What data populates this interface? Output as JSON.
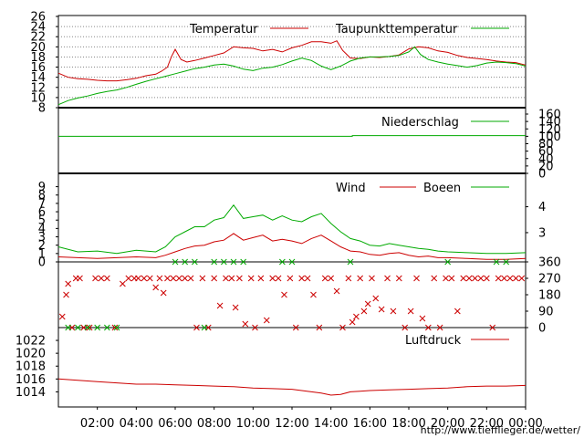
{
  "chart_data": {
    "type": "line",
    "source_url": "http://www.tiefflieger.de/wetter/",
    "x_ticks": [
      "02:00",
      "04:00",
      "06:00",
      "08:00",
      "10:00",
      "12:00",
      "14:00",
      "16:00",
      "18:00",
      "20:00",
      "22:00",
      "00:00"
    ],
    "x_tick_hours": [
      2,
      4,
      6,
      8,
      10,
      12,
      14,
      16,
      18,
      20,
      22,
      24
    ],
    "x_range": [
      0,
      24
    ],
    "panels": [
      {
        "id": "temperature",
        "ylim": [
          8,
          26
        ],
        "y_ticks_left": [
          "8",
          "10",
          "12",
          "14",
          "16",
          "18",
          "20",
          "22",
          "24",
          "26"
        ],
        "y_tick_values": [
          8,
          10,
          12,
          14,
          16,
          18,
          20,
          22,
          24,
          26
        ],
        "grid": "horizontal-dotted",
        "legend_placement": "top",
        "series": [
          {
            "name": "Temperatur",
            "color": "#cc0000",
            "x": [
              0,
              0.5,
              1,
              1.5,
              2,
              2.5,
              3,
              3.5,
              4,
              4.5,
              5,
              5.3,
              5.6,
              5.8,
              6,
              6.3,
              6.6,
              7,
              7.5,
              8,
              8.5,
              9,
              9.5,
              10,
              10.5,
              11,
              11.5,
              12,
              12.5,
              13,
              13.5,
              14,
              14.3,
              14.6,
              15,
              15.5,
              16,
              16.5,
              17,
              17.5,
              18,
              18.5,
              19,
              19.5,
              20,
              20.5,
              21,
              21.5,
              22,
              22.5,
              23,
              23.5,
              24
            ],
            "y": [
              14.8,
              14.0,
              13.7,
              13.6,
              13.4,
              13.3,
              13.3,
              13.5,
              13.8,
              14.3,
              14.6,
              15.2,
              16.0,
              18.0,
              19.5,
              17.5,
              17.0,
              17.3,
              17.8,
              18.3,
              18.8,
              20.0,
              19.8,
              19.7,
              19.2,
              19.5,
              19.0,
              19.8,
              20.3,
              21.0,
              21.0,
              20.7,
              21.2,
              19.3,
              17.8,
              17.7,
              18.0,
              17.9,
              18.1,
              18.4,
              19.6,
              20.0,
              19.8,
              19.2,
              18.9,
              18.3,
              17.9,
              17.7,
              17.5,
              17.2,
              17.0,
              16.9,
              16.4
            ]
          },
          {
            "name": "Taupunkttemperatur",
            "color": "#00aa00",
            "x": [
              0,
              0.5,
              1,
              1.5,
              2,
              2.5,
              3,
              3.5,
              4,
              4.5,
              5,
              5.5,
              6,
              6.5,
              7,
              7.5,
              8,
              8.5,
              9,
              9.5,
              10,
              10.5,
              11,
              11.5,
              12,
              12.5,
              13,
              13.5,
              14,
              14.5,
              15,
              15.5,
              16,
              16.5,
              17,
              17.5,
              18,
              18.3,
              18.6,
              19,
              19.5,
              20,
              20.5,
              21,
              21.5,
              22,
              22.5,
              23,
              23.5,
              24
            ],
            "y": [
              8.6,
              9.4,
              9.9,
              10.3,
              10.8,
              11.2,
              11.5,
              12.0,
              12.6,
              13.2,
              13.7,
              14.2,
              14.7,
              15.2,
              15.7,
              16.0,
              16.4,
              16.6,
              16.2,
              15.6,
              15.3,
              15.8,
              16.0,
              16.5,
              17.2,
              17.8,
              17.3,
              16.2,
              15.5,
              16.2,
              17.2,
              17.8,
              18.0,
              18.0,
              18.1,
              18.3,
              19.0,
              20.0,
              18.5,
              17.5,
              17.0,
              16.6,
              16.3,
              16.0,
              16.3,
              16.8,
              17.0,
              16.9,
              16.7,
              16.2
            ]
          }
        ]
      },
      {
        "id": "precipitation",
        "ylim": [
          0,
          160
        ],
        "y_ticks_right": [
          "0",
          "20",
          "40",
          "60",
          "80",
          "100",
          "120",
          "140",
          "160"
        ],
        "y_tick_values": [
          0,
          20,
          40,
          60,
          80,
          100,
          120,
          140,
          160
        ],
        "legend_placement": "top-right",
        "series": [
          {
            "name": "Niederschlag",
            "color": "#00aa00",
            "x": [
              0,
              15.1,
              15.1,
              24
            ],
            "y": [
              100,
              100,
              102,
              102
            ]
          }
        ]
      },
      {
        "id": "wind",
        "ylim": [
          0,
          9.5
        ],
        "y_ticks_left": [
          "0",
          "1",
          "2",
          "3",
          "4",
          "5",
          "6",
          "7",
          "8",
          "9"
        ],
        "y_tick_values": [
          0,
          1,
          2,
          3,
          4,
          5,
          6,
          7,
          8,
          9
        ],
        "y_ticks_right": [
          "3",
          "4"
        ],
        "y_tick_values_right": [
          3,
          4
        ],
        "right_axis_scale": [
          [
            3,
            3.5
          ],
          [
            4,
            6.6
          ]
        ],
        "legend_placement": "top-right",
        "series": [
          {
            "name": "Wind",
            "color": "#cc0000",
            "x": [
              0,
              1,
              2,
              3,
              4,
              5,
              5.5,
              6,
              6.5,
              7,
              7.5,
              8,
              8.5,
              9,
              9.5,
              10,
              10.5,
              11,
              11.5,
              12,
              12.5,
              13,
              13.5,
              14,
              14.5,
              15,
              15.5,
              16,
              16.5,
              17,
              17.5,
              18,
              18.5,
              19,
              19.5,
              20,
              21,
              22,
              23,
              24
            ],
            "y": [
              0.6,
              0.5,
              0.4,
              0.5,
              0.6,
              0.5,
              0.8,
              1.2,
              1.6,
              1.9,
              2.0,
              2.4,
              2.6,
              3.4,
              2.6,
              2.9,
              3.2,
              2.5,
              2.7,
              2.5,
              2.2,
              2.8,
              3.2,
              2.5,
              1.8,
              1.3,
              1.2,
              0.9,
              0.8,
              1.0,
              1.1,
              0.8,
              0.6,
              0.7,
              0.5,
              0.5,
              0.4,
              0.3,
              0.3,
              0.4
            ]
          },
          {
            "name": "Boeen",
            "color": "#00aa00",
            "x": [
              0,
              1,
              2,
              3,
              4,
              5,
              5.5,
              6,
              6.5,
              7,
              7.5,
              8,
              8.5,
              9,
              9.5,
              10,
              10.5,
              11,
              11.5,
              12,
              12.5,
              13,
              13.5,
              14,
              14.5,
              15,
              15.5,
              16,
              16.5,
              17,
              17.5,
              18,
              18.5,
              19,
              19.5,
              20,
              21,
              22,
              23,
              24
            ],
            "y": [
              1.8,
              1.2,
              1.3,
              1.0,
              1.4,
              1.2,
              1.8,
              3.0,
              3.6,
              4.2,
              4.2,
              5.0,
              5.3,
              6.8,
              5.2,
              5.4,
              5.6,
              5.0,
              5.5,
              5.0,
              4.8,
              5.4,
              5.8,
              4.6,
              3.6,
              2.8,
              2.5,
              2.0,
              1.9,
              2.2,
              2.0,
              1.8,
              1.6,
              1.5,
              1.3,
              1.2,
              1.1,
              1.0,
              1.0,
              1.1
            ]
          }
        ]
      },
      {
        "id": "wind_direction",
        "type": "scatter",
        "ylim": [
          0,
          360
        ],
        "y_ticks_right": [
          "0",
          "90",
          "180",
          "270",
          "360"
        ],
        "y_tick_values": [
          0,
          90,
          180,
          270,
          360
        ],
        "marker": "x",
        "series": [
          {
            "name": "",
            "color": "#cc0000",
            "x": [
              0.2,
              0.4,
              0.5,
              0.7,
              0.9,
              1.1,
              1.3,
              1.6,
              1.9,
              2.2,
              2.5,
              2.9,
              3.3,
              3.6,
              3.9,
              4.1,
              4.4,
              4.7,
              5.0,
              5.2,
              5.4,
              5.6,
              5.9,
              6.2,
              6.5,
              6.8,
              7.1,
              7.4,
              7.7,
              8.0,
              8.3,
              8.6,
              8.9,
              9.1,
              9.3,
              9.6,
              9.9,
              10.1,
              10.4,
              10.7,
              11.0,
              11.3,
              11.6,
              11.9,
              12.2,
              12.5,
              12.8,
              13.1,
              13.4,
              13.7,
              14.0,
              14.3,
              14.6,
              14.9,
              15.1,
              15.3,
              15.5,
              15.7,
              15.9,
              16.1,
              16.3,
              16.6,
              16.9,
              17.2,
              17.5,
              17.8,
              18.1,
              18.4,
              18.7,
              19.0,
              19.3,
              19.6,
              19.9,
              20.2,
              20.5,
              20.8,
              21.1,
              21.4,
              21.7,
              22.0,
              22.3,
              22.6,
              22.9,
              23.2,
              23.5,
              23.8
            ],
            "y": [
              60,
              180,
              240,
              0,
              270,
              270,
              0,
              0,
              270,
              270,
              270,
              0,
              240,
              270,
              270,
              270,
              270,
              270,
              220,
              270,
              190,
              270,
              270,
              270,
              270,
              270,
              0,
              270,
              0,
              270,
              120,
              270,
              270,
              110,
              270,
              20,
              270,
              0,
              270,
              40,
              270,
              270,
              180,
              270,
              0,
              270,
              270,
              180,
              0,
              270,
              270,
              200,
              0,
              270,
              30,
              60,
              270,
              90,
              130,
              270,
              160,
              100,
              270,
              90,
              270,
              0,
              90,
              270,
              50,
              0,
              270,
              0,
              270,
              270,
              90,
              270,
              270,
              270,
              270,
              270,
              0,
              270,
              270,
              270,
              270,
              270
            ]
          },
          {
            "name": "",
            "color": "#00aa00",
            "x": [
              0.5,
              1.0,
              1.5,
              2.0,
              2.5,
              3.0,
              6.0,
              6.5,
              7.0,
              7.5,
              8.0,
              8.5,
              9.0,
              9.5,
              11.5,
              12.0,
              15.0,
              20.0,
              22.5,
              23.0
            ],
            "y": [
              0,
              0,
              0,
              0,
              0,
              0,
              360,
              360,
              360,
              0,
              360,
              360,
              360,
              360,
              360,
              360,
              360,
              360,
              360,
              360
            ]
          }
        ]
      },
      {
        "id": "pressure",
        "ylim": [
          1012.5,
          1023
        ],
        "y_ticks_left": [
          "1014",
          "1016",
          "1018",
          "1020",
          "1022"
        ],
        "y_tick_values": [
          1014,
          1016,
          1018,
          1020,
          1022
        ],
        "legend_placement": "top-right",
        "series": [
          {
            "name": "Luftdruck",
            "color": "#cc0000",
            "x": [
              0,
              1,
              2,
              3,
              4,
              5,
              6,
              7,
              8,
              9,
              10,
              11,
              12,
              12.5,
              13,
              13.5,
              14,
              14.5,
              15,
              15.5,
              16,
              17,
              18,
              19,
              20,
              21,
              22,
              23,
              24
            ],
            "y": [
              1016.0,
              1015.8,
              1015.6,
              1015.4,
              1015.2,
              1015.2,
              1015.1,
              1015.0,
              1014.9,
              1014.8,
              1014.6,
              1014.5,
              1014.4,
              1014.2,
              1014.0,
              1013.8,
              1013.5,
              1013.6,
              1014.0,
              1014.1,
              1014.2,
              1014.3,
              1014.4,
              1014.5,
              1014.6,
              1014.8,
              1014.9,
              1014.9,
              1015.0
            ]
          }
        ]
      }
    ]
  }
}
